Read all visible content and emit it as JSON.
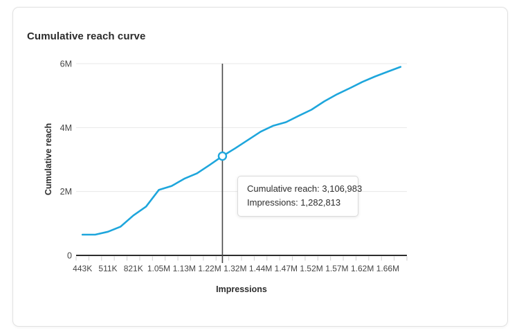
{
  "card": {
    "title": "Cumulative reach curve"
  },
  "axes": {
    "x_title": "Impressions",
    "y_title": "Cumulative reach"
  },
  "tooltip": {
    "lines": [
      {
        "text": "Cumulative reach: 3,106,983"
      },
      {
        "text": "Impressions: 1,282,813"
      }
    ]
  },
  "colors": {
    "line": "#1ea6dc",
    "gridline": "#e7e7e7",
    "axis": "#2c2c2c",
    "tick": "#cfcfcf",
    "tick_label": "#454545",
    "crosshair": "#474747",
    "marker_fill": "#ffffff",
    "card_border": "#e1e1e1"
  },
  "chart_data": {
    "type": "line",
    "title": "Cumulative reach curve",
    "xlabel": "Impressions",
    "ylabel": "Cumulative reach",
    "x_tick_labels": [
      "443K",
      "511K",
      "821K",
      "1.05M",
      "1.13M",
      "1.22M",
      "1.32M",
      "1.44M",
      "1.47M",
      "1.52M",
      "1.57M",
      "1.62M",
      "1.66M"
    ],
    "y_tick_labels": [
      "0",
      "2M",
      "4M",
      "6M"
    ],
    "y_tick_values_millions": [
      0,
      2,
      4,
      6
    ],
    "ylim_millions": [
      0,
      6
    ],
    "grid": "horizontal-only",
    "legend": "none",
    "series": [
      {
        "name": "Cumulative reach",
        "reach_millions": [
          0.65,
          0.65,
          0.74,
          0.9,
          1.25,
          1.53,
          2.05,
          2.17,
          2.4,
          2.57,
          2.83,
          3.106983,
          3.35,
          3.61,
          3.87,
          4.06,
          4.17,
          4.37,
          4.56,
          4.82,
          5.04,
          5.23,
          5.43,
          5.6,
          5.75,
          5.9
        ]
      }
    ],
    "hovered_point": {
      "index": 11,
      "cumulative_reach": "3,106,983",
      "cumulative_reach_value": 3106983,
      "impressions": "1,282,813",
      "impressions_value": 1282813
    }
  }
}
